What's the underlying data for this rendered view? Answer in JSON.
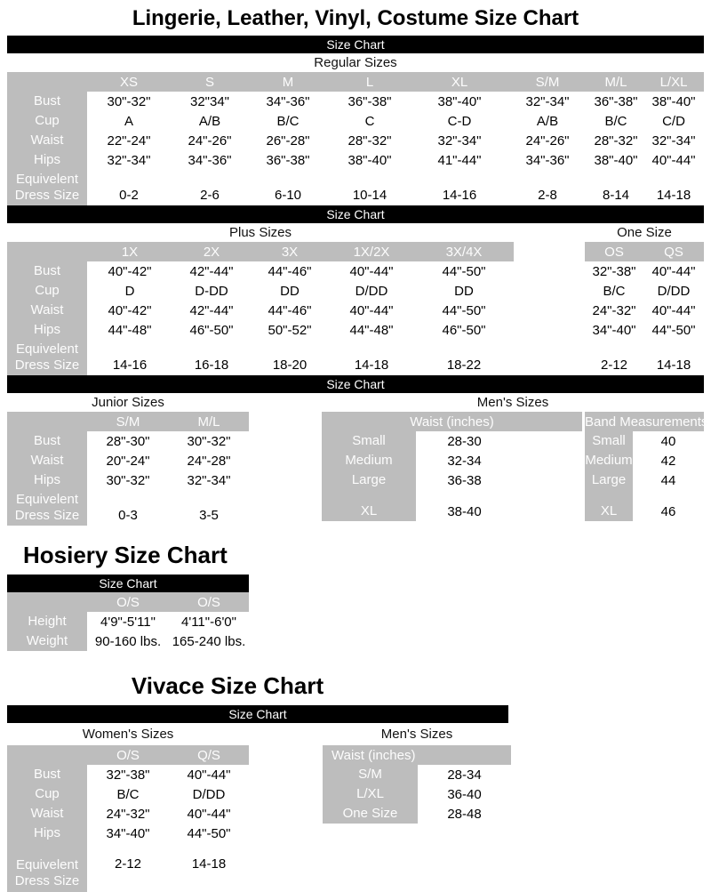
{
  "colors": {
    "gray": "#bdbdbd",
    "black": "#000000"
  },
  "lingerie": {
    "title": "Lingerie, Leather, Vinyl, Costume Size Chart",
    "size_chart_bar": "Size Chart",
    "regular": {
      "label": "Regular Sizes",
      "columns": [
        "XS",
        "S",
        "M",
        "L",
        "XL",
        "S/M",
        "M/L",
        "L/XL"
      ],
      "rows": [
        {
          "label": "Bust",
          "values": [
            "30\"-32\"",
            "32\"34\"",
            "34\"-36\"",
            "36\"-38\"",
            "38\"-40\"",
            "32\"-34\"",
            "36\"-38\"",
            "38\"-40\""
          ]
        },
        {
          "label": "Cup",
          "values": [
            "A",
            "A/B",
            "B/C",
            "C",
            "C-D",
            "A/B",
            "B/C",
            "C/D"
          ]
        },
        {
          "label": "Waist",
          "values": [
            "22\"-24\"",
            "24\"-26\"",
            "26\"-28\"",
            "28\"-32\"",
            "32\"-34\"",
            "24\"-26\"",
            "28\"-32\"",
            "32\"-34\""
          ]
        },
        {
          "label": "Hips",
          "values": [
            "32\"-34\"",
            "34\"-36\"",
            "36\"-38\"",
            "38\"-40\"",
            "41\"-44\"",
            "34\"-36\"",
            "38\"-40\"",
            "40\"-44\""
          ]
        },
        {
          "label": "Equivelent\nDress Size",
          "cls": "tall-bottom",
          "values": [
            "0-2",
            "2-6",
            "6-10",
            "10-14",
            "14-16",
            "2-8",
            "8-14",
            "14-18"
          ]
        }
      ]
    },
    "plus": {
      "label": "Plus Sizes",
      "columns": [
        "1X",
        "2X",
        "3X",
        "1X/2X",
        "3X/4X"
      ],
      "rows": [
        {
          "label": "Bust",
          "values": [
            "40\"-42\"",
            "42\"-44\"",
            "44\"-46\"",
            "40\"-44\"",
            "44\"-50\""
          ]
        },
        {
          "label": "Cup",
          "values": [
            "D",
            "D-DD",
            "DD",
            "D/DD",
            "DD"
          ]
        },
        {
          "label": "Waist",
          "values": [
            "40\"-42\"",
            "42\"-44\"",
            "44\"-46\"",
            "40\"-44\"",
            "44\"-50\""
          ]
        },
        {
          "label": "Hips",
          "values": [
            "44\"-48\"",
            "46\"-50\"",
            "50\"-52\"",
            "44\"-48\"",
            "46\"-50\""
          ]
        },
        {
          "label": "Equivelent\nDress Size",
          "cls": "tall-bottom",
          "values": [
            "14-16",
            "16-18",
            "18-20",
            "14-18",
            "18-22"
          ]
        }
      ]
    },
    "one_size": {
      "label": "One Size",
      "columns": [
        "OS",
        "QS"
      ],
      "rows": [
        {
          "values": [
            "32\"-38\"",
            "40\"-44\""
          ]
        },
        {
          "values": [
            "B/C",
            "D/DD"
          ]
        },
        {
          "values": [
            "24\"-32\"",
            "40\"-44\""
          ]
        },
        {
          "values": [
            "34\"-40\"",
            "44\"-50\""
          ]
        },
        {
          "cls": "tall-bottom",
          "values": [
            "2-12",
            "14-18"
          ]
        }
      ]
    },
    "junior": {
      "label": "Junior Sizes",
      "columns": [
        "S/M",
        "M/L"
      ],
      "rows": [
        {
          "label": "Bust",
          "values": [
            "28\"-30\"",
            "30\"-32\""
          ]
        },
        {
          "label": "Waist",
          "values": [
            "20\"-24\"",
            "24\"-28\""
          ]
        },
        {
          "label": "Hips",
          "values": [
            "30\"-32\"",
            "32\"-34\""
          ]
        },
        {
          "label": "Equivelent\nDress Size",
          "cls": "tall-bottom",
          "values": [
            "0-3",
            "3-5"
          ]
        }
      ]
    },
    "mens": {
      "label": "Men's Sizes",
      "waist": {
        "column": "Waist (inches)",
        "rows": [
          {
            "label": "Small",
            "values": [
              "28-30"
            ]
          },
          {
            "label": "Medium",
            "values": [
              "32-34"
            ]
          },
          {
            "label": "Large",
            "values": [
              "36-38"
            ]
          },
          {
            "label": "",
            "cls": "gap",
            "values": [
              ""
            ]
          },
          {
            "label": "XL",
            "values": [
              "38-40"
            ]
          }
        ]
      },
      "band": {
        "column": "Band Measurements",
        "rows": [
          {
            "label": "Small",
            "values": [
              "40"
            ]
          },
          {
            "label": "Medium",
            "values": [
              "42"
            ]
          },
          {
            "label": "Large",
            "values": [
              "44"
            ]
          },
          {
            "label": "",
            "cls": "gap",
            "values": [
              ""
            ]
          },
          {
            "label": "XL",
            "values": [
              "46"
            ]
          }
        ]
      }
    }
  },
  "hosiery": {
    "title": "Hosiery Size Chart",
    "size_chart_bar": "Size Chart",
    "columns": [
      "O/S",
      "O/S"
    ],
    "rows": [
      {
        "label": "Height",
        "values": [
          "4'9\"-5'11\"",
          "4'11\"-6'0\""
        ]
      },
      {
        "label": "Weight",
        "values": [
          "90-160 lbs.",
          "165-240 lbs."
        ]
      }
    ]
  },
  "vivace": {
    "title": "Vivace Size Chart",
    "size_chart_bar": "Size Chart",
    "womens": {
      "label": "Women's Sizes",
      "columns": [
        "O/S",
        "Q/S"
      ],
      "rows": [
        {
          "label": "Bust",
          "values": [
            "32\"-38\"",
            "40\"-44\""
          ]
        },
        {
          "label": "Cup",
          "values": [
            "B/C",
            "D/DD"
          ]
        },
        {
          "label": "Waist",
          "values": [
            "24\"-32\"",
            "40\"-44\""
          ]
        },
        {
          "label": "Hips",
          "values": [
            "34\"-40\"",
            "44\"-50\""
          ]
        },
        {
          "label": "",
          "cls": "gap",
          "values": [
            "",
            ""
          ]
        },
        {
          "label": "Equivelent\nDress Size",
          "cls": "tall-top",
          "values": [
            "2-12",
            "14-18"
          ]
        }
      ]
    },
    "mens": {
      "label": "Men's Sizes",
      "column": "Waist (inches)",
      "rows": [
        {
          "label": "S/M",
          "values": [
            "28-34"
          ]
        },
        {
          "label": "L/XL",
          "values": [
            "36-40"
          ]
        },
        {
          "label": "One Size",
          "values": [
            "28-48"
          ]
        }
      ]
    }
  }
}
